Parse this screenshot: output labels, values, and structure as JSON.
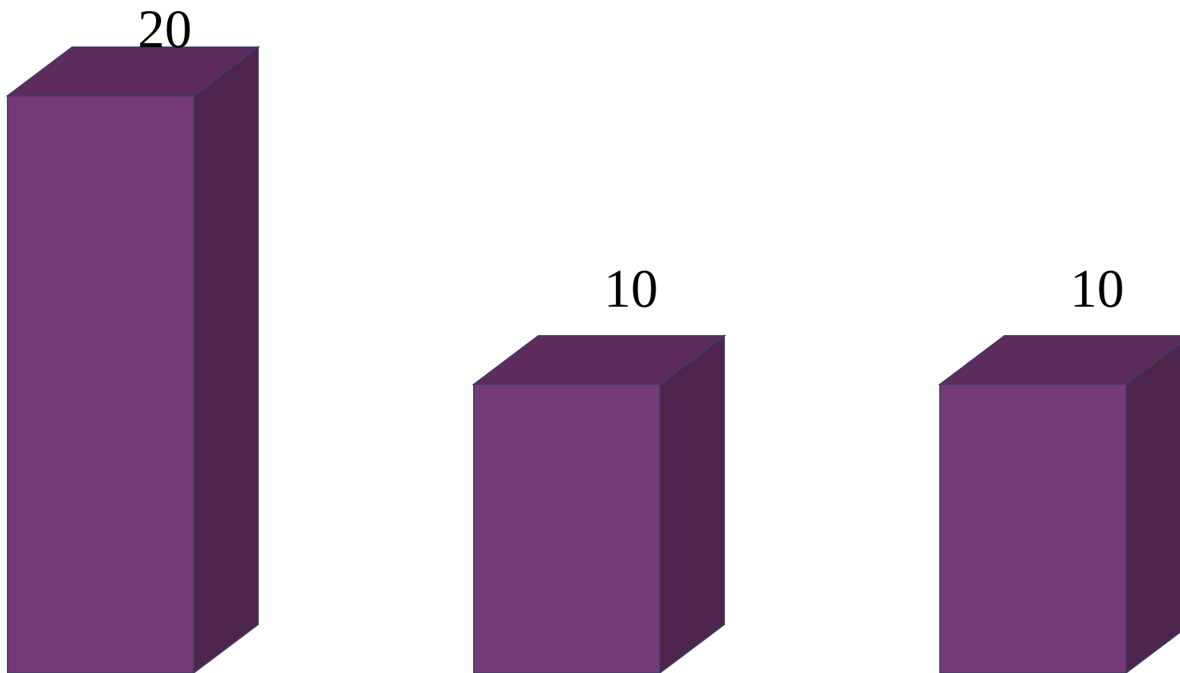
{
  "chart_data": {
    "type": "bar",
    "style": "3d-box",
    "categories": [
      "",
      "",
      ""
    ],
    "values": [
      20,
      10,
      10
    ],
    "data_labels": [
      "20",
      "10",
      "10"
    ],
    "title": "",
    "xlabel": "",
    "ylabel": "",
    "ylim": [
      0,
      20
    ],
    "grid": false,
    "legend": "none",
    "colors": {
      "front": "#773A78",
      "top": "#5D2B5C",
      "side": "#4D254C",
      "edge": "#3F3F63"
    }
  }
}
